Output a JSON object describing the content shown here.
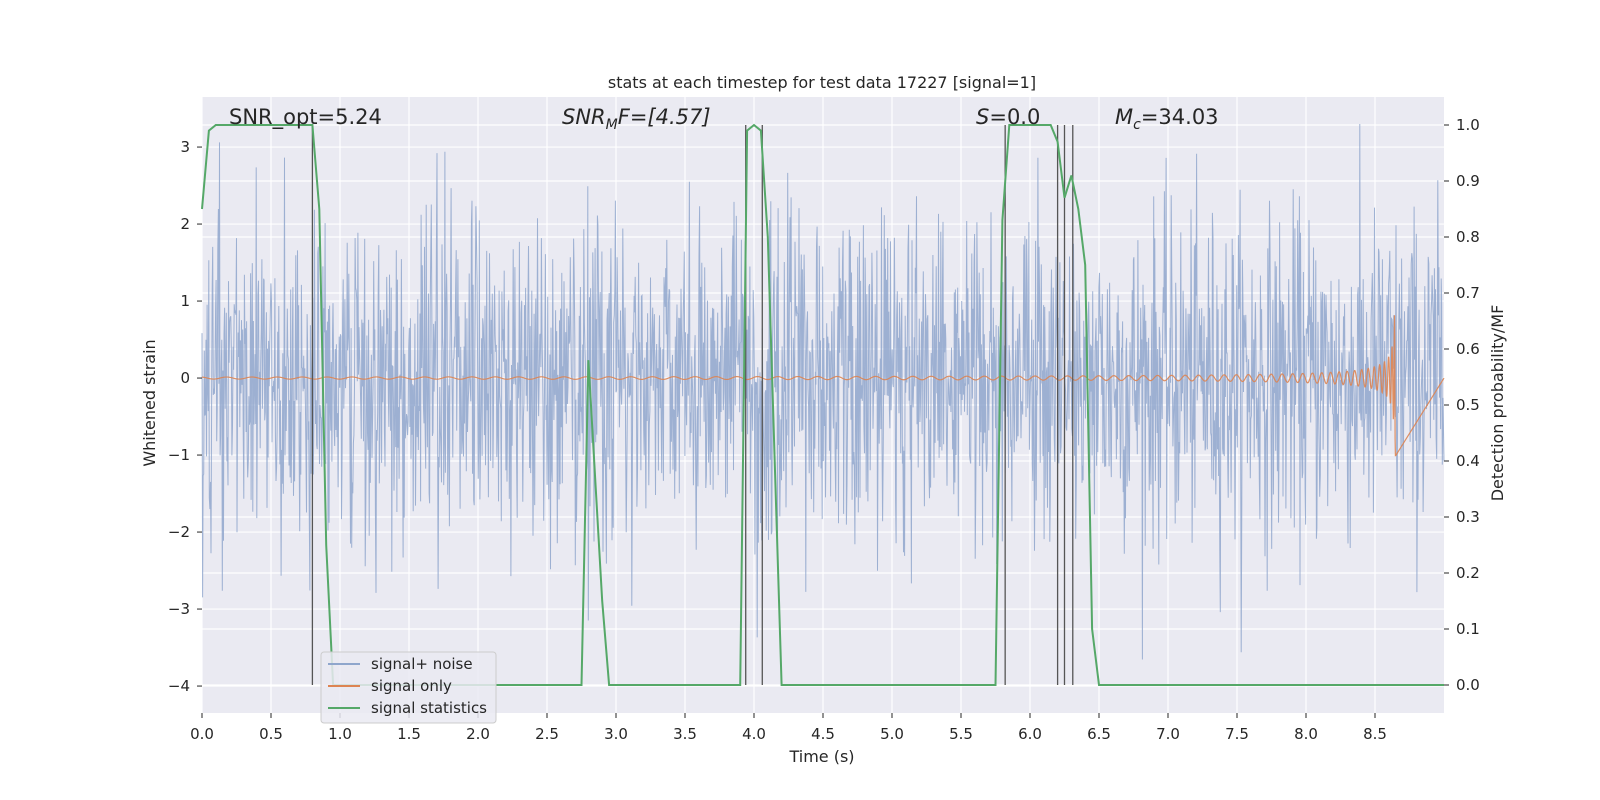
{
  "chart_data": {
    "type": "line",
    "title": "stats at each timestep for test data 17227 [signal=1]",
    "xlabel": "Time (s)",
    "ylabel_left": "Whitened strain",
    "ylabel_right": "Detection probability/MF",
    "xlim": [
      0.0,
      9.0
    ],
    "ylim_left": [
      -4.35,
      3.65
    ],
    "ylim_right": [
      -0.05,
      1.05
    ],
    "xticks": [
      "0.0",
      "0.5",
      "1.0",
      "1.5",
      "2.0",
      "2.5",
      "3.0",
      "3.5",
      "4.0",
      "4.5",
      "5.0",
      "5.5",
      "6.0",
      "6.5",
      "7.0",
      "7.5",
      "8.0",
      "8.5"
    ],
    "xtick_values": [
      0,
      0.5,
      1,
      1.5,
      2,
      2.5,
      3,
      3.5,
      4,
      4.5,
      5,
      5.5,
      6,
      6.5,
      7,
      7.5,
      8,
      8.5
    ],
    "yticks_left": [
      "−4",
      "−3",
      "−2",
      "−1",
      "0",
      "1",
      "2",
      "3"
    ],
    "ytick_values_left": [
      -4,
      -3,
      -2,
      -1,
      0,
      1,
      2,
      3
    ],
    "yticks_right": [
      "0.0",
      "0.1",
      "0.2",
      "0.3",
      "0.4",
      "0.5",
      "0.6",
      "0.7",
      "0.8",
      "0.9",
      "1.0"
    ],
    "ytick_values_right": [
      0,
      0.1,
      0.2,
      0.3,
      0.4,
      0.5,
      0.6,
      0.7,
      0.8,
      0.9,
      1.0
    ],
    "grid": true,
    "legend_position": "lower-left",
    "annotations": {
      "snr_opt": "SNR_opt=5.24",
      "snr_mf_main": "SNR",
      "snr_mf_sub": "M",
      "snr_mf_rest": "F=[4.57]",
      "s_main": "S",
      "s_rest": "=0.0",
      "mc_main": "M",
      "mc_sub": "c",
      "mc_rest": "=34.03"
    },
    "series": [
      {
        "name": "signal+ noise",
        "color": "#8fa6cc",
        "description_values": {
          "typical_range": [
            -2.0,
            2.1
          ],
          "max": 3.3,
          "min": -4.0
        }
      },
      {
        "name": "signal only",
        "color": "#dd8452",
        "chirp": {
          "start_t": 0.0,
          "merger_t": 8.65,
          "peak_amplitude": 1.3
        }
      },
      {
        "name": "signal statistics",
        "color": "#55a868",
        "axis": "right",
        "x": [
          0.0,
          0.05,
          0.1,
          0.75,
          0.8,
          0.85,
          0.9,
          0.95,
          2.5,
          2.75,
          2.8,
          2.9,
          2.95,
          3.0,
          3.9,
          3.95,
          4.0,
          4.05,
          4.1,
          4.2,
          5.0,
          5.75,
          5.8,
          5.85,
          6.15,
          6.2,
          6.25,
          6.3,
          6.35,
          6.4,
          6.45,
          6.5,
          7.0,
          9.0
        ],
        "y": [
          0.85,
          0.99,
          1.0,
          1.0,
          1.0,
          0.85,
          0.25,
          0.0,
          0.0,
          0.0,
          0.58,
          0.15,
          0.0,
          0.0,
          0.0,
          0.99,
          1.0,
          0.99,
          0.8,
          0.0,
          0.0,
          0.0,
          0.83,
          1.0,
          1.0,
          0.97,
          0.87,
          0.91,
          0.85,
          0.75,
          0.1,
          0.0,
          0.0,
          0.0
        ]
      }
    ],
    "vertical_lines_x": [
      0.8,
      3.94,
      4.06,
      5.82,
      6.2,
      6.25,
      6.31
    ]
  }
}
